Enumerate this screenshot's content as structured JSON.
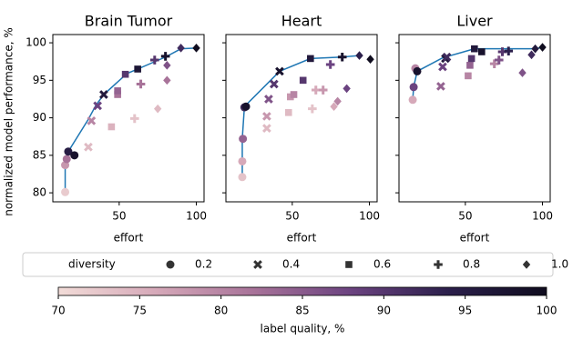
{
  "chart_data": [
    {
      "type": "scatter",
      "title": "Brain Tumor",
      "xlabel": "effort",
      "ylabel": "normalized model performance, %",
      "xlim": [
        7,
        105
      ],
      "ylim": [
        78.8,
        101.1
      ],
      "xticks": [
        50,
        100
      ],
      "yticks": [
        80,
        85,
        90,
        95,
        100
      ],
      "series": [
        {
          "name": "0.2",
          "marker": "circle",
          "x": [
            15,
            15,
            16,
            17,
            21
          ],
          "values": [
            80.1,
            83.7,
            84.5,
            85.5,
            85.0
          ],
          "quality": [
            72,
            78,
            82,
            95,
            98
          ]
        },
        {
          "name": "0.4",
          "marker": "cross",
          "x": [
            30,
            32,
            36,
            40
          ],
          "values": [
            86.1,
            89.6,
            91.6,
            93.1
          ],
          "quality": [
            74,
            80,
            88,
            96
          ]
        },
        {
          "name": "0.6",
          "marker": "square",
          "x": [
            45,
            49,
            49,
            54,
            62
          ],
          "values": [
            88.8,
            93.1,
            93.6,
            95.8,
            96.5
          ],
          "quality": [
            75,
            82,
            84,
            90,
            97
          ]
        },
        {
          "name": "0.8",
          "marker": "plus",
          "x": [
            60,
            64,
            73,
            80
          ],
          "values": [
            89.9,
            94.5,
            97.7,
            98.2
          ],
          "quality": [
            73,
            82,
            90,
            98
          ]
        },
        {
          "name": "1.0",
          "marker": "diamond",
          "x": [
            75,
            81,
            81,
            90,
            100
          ],
          "values": [
            91.2,
            95.0,
            97.0,
            99.3,
            99.3
          ],
          "quality": [
            74,
            82,
            86,
            92,
            100
          ]
        }
      ],
      "frontier": {
        "color": "#1f77b4",
        "x": [
          15,
          15,
          17,
          30,
          35,
          40,
          55,
          62,
          80,
          90,
          100
        ],
        "values": [
          80.1,
          84.5,
          85.5,
          89.8,
          91.7,
          93.1,
          95.9,
          96.5,
          98.1,
          99.2,
          99.3
        ]
      }
    },
    {
      "type": "scatter",
      "title": "Heart",
      "xlabel": "effort",
      "xlim": [
        7,
        105
      ],
      "ylim": [
        78.8,
        101.1
      ],
      "xticks": [
        50,
        100
      ],
      "yticks": [
        80,
        85,
        90,
        95,
        100
      ],
      "series": [
        {
          "name": "0.2",
          "marker": "circle",
          "x": [
            17.6,
            17.6,
            18,
            19,
            20
          ],
          "values": [
            82.1,
            84.2,
            87.2,
            91.4,
            91.5
          ],
          "quality": [
            73,
            76,
            84,
            92,
            98
          ]
        },
        {
          "name": "0.4",
          "marker": "cross",
          "x": [
            33.5,
            33.5,
            34.7,
            38.2,
            41.8
          ],
          "values": [
            88.6,
            90.2,
            92.5,
            94.5,
            96.2
          ],
          "quality": [
            74,
            78,
            86,
            90,
            98
          ]
        },
        {
          "name": "0.6",
          "marker": "square",
          "x": [
            47.6,
            48.8,
            51,
            57,
            61.8
          ],
          "values": [
            90.7,
            92.8,
            93.1,
            95.0,
            97.9
          ],
          "quality": [
            74,
            78,
            80,
            90,
            96
          ]
        },
        {
          "name": "0.8",
          "marker": "plus",
          "x": [
            63,
            65.3,
            70,
            74.7,
            82.4
          ],
          "values": [
            91.2,
            93.7,
            93.7,
            97.1,
            98.1
          ],
          "quality": [
            73,
            76,
            78,
            88,
            98
          ]
        },
        {
          "name": "1.0",
          "marker": "diamond",
          "x": [
            77,
            79.4,
            85.3,
            93.5,
            100.6
          ],
          "values": [
            91.5,
            92.2,
            93.9,
            98.3,
            97.8
          ],
          "quality": [
            76,
            80,
            88,
            94,
            100
          ]
        }
      ],
      "frontier": {
        "color": "#1f77b4",
        "x": [
          17.6,
          17.6,
          19,
          41.8,
          61.8,
          82.4,
          93.5
        ],
        "values": [
          82.1,
          87.2,
          91.5,
          96.2,
          97.9,
          98.1,
          98.3
        ]
      }
    },
    {
      "type": "scatter",
      "title": "Liver",
      "xlabel": "effort",
      "xlim": [
        7,
        105
      ],
      "ylim": [
        78.8,
        101.1
      ],
      "xticks": [
        50,
        100
      ],
      "yticks": [
        80,
        85,
        90,
        95,
        100
      ],
      "series": [
        {
          "name": "0.2",
          "marker": "circle",
          "x": [
            15.9,
            16.5,
            17.6,
            18.8
          ],
          "values": [
            92.4,
            94.1,
            96.6,
            96.2
          ],
          "quality": [
            76,
            88,
            80,
            98
          ]
        },
        {
          "name": "0.4",
          "marker": "cross",
          "x": [
            34.1,
            35.3,
            37.1,
            38
          ],
          "values": [
            94.2,
            96.8,
            97.9,
            98.1
          ],
          "quality": [
            84,
            88,
            96,
            92
          ]
        },
        {
          "name": "0.6",
          "marker": "square",
          "x": [
            51.8,
            53,
            54,
            55.9,
            60.6
          ],
          "values": [
            95.6,
            97.0,
            97.9,
            99.2,
            98.8
          ],
          "quality": [
            80,
            84,
            90,
            96,
            98
          ]
        },
        {
          "name": "0.8",
          "marker": "plus",
          "x": [
            68.8,
            71.8,
            74,
            78
          ],
          "values": [
            97.2,
            97.7,
            98.8,
            98.9
          ],
          "quality": [
            80,
            86,
            90,
            94
          ]
        },
        {
          "name": "1.0",
          "marker": "diamond",
          "x": [
            87,
            92.9,
            95.3,
            100
          ],
          "values": [
            96.0,
            98.4,
            99.2,
            99.4
          ],
          "quality": [
            86,
            92,
            96,
            100
          ]
        }
      ],
      "frontier": {
        "color": "#1f77b4",
        "x": [
          15.9,
          16.5,
          18.8,
          35.3,
          55.9,
          95.3,
          100
        ],
        "values": [
          92.4,
          94.1,
          96.2,
          98.0,
          99.2,
          99.2,
          99.4
        ]
      }
    }
  ],
  "legend": {
    "title": "diversity"
  },
  "colorbar": {
    "label": "label quality, %",
    "lim": [
      70,
      100
    ],
    "ticks": [
      70,
      75,
      80,
      85,
      90,
      95,
      100
    ],
    "colormap": [
      "#f2dcd8",
      "#d6a9b9",
      "#a87399",
      "#6b4380",
      "#2b1f4b",
      "#0f0c1e"
    ]
  }
}
